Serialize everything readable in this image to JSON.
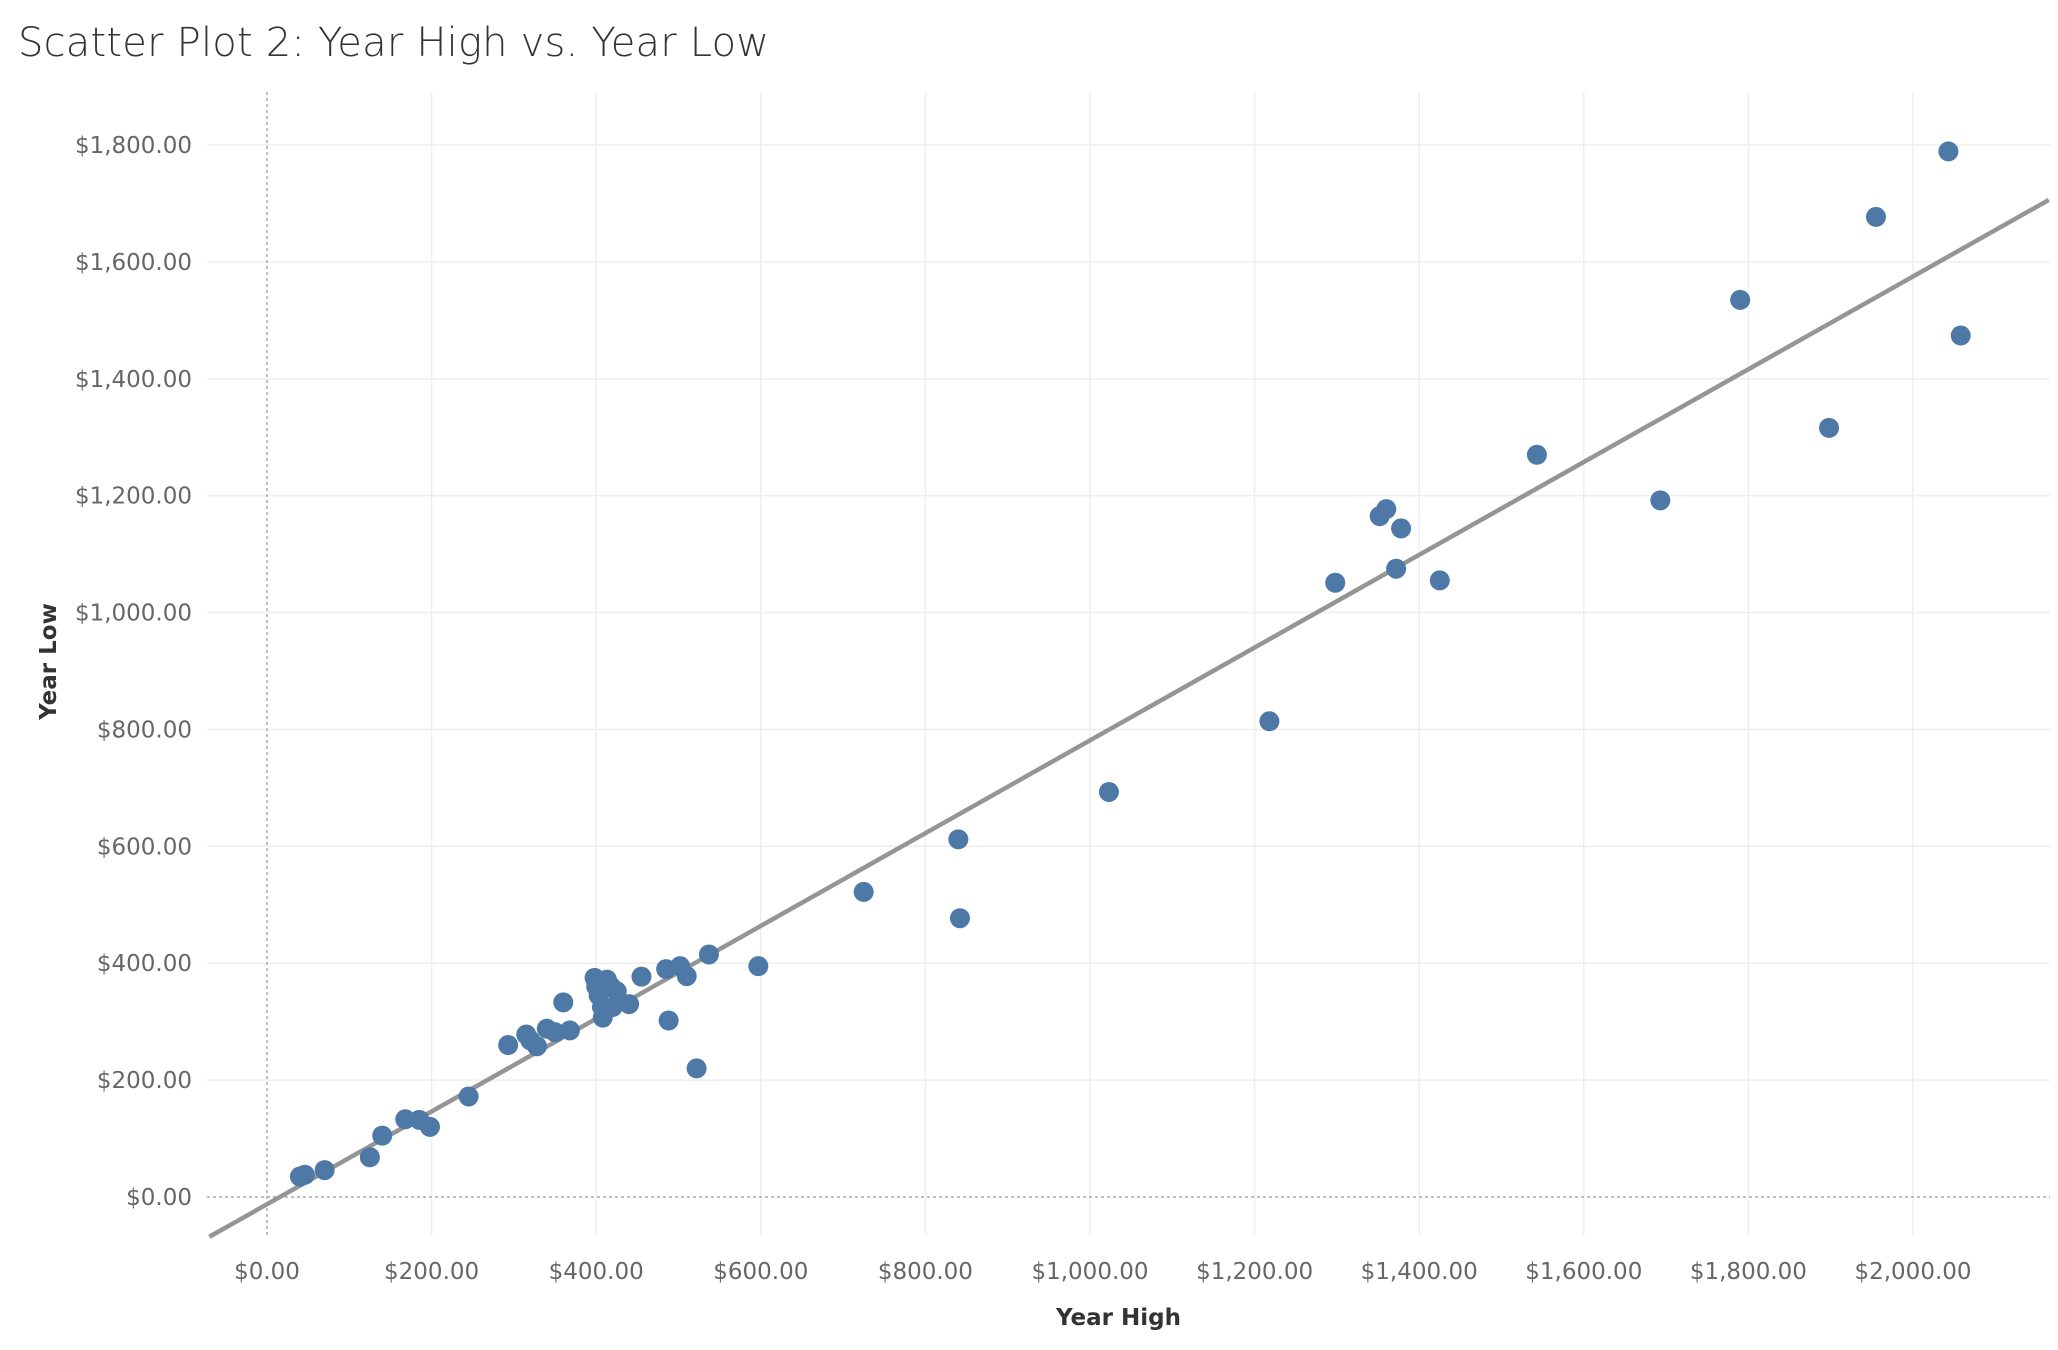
{
  "chart_data": {
    "type": "scatter",
    "title": "Scatter Plot 2: Year High vs. Year Low",
    "xlabel": "Year High",
    "ylabel": "Year Low",
    "xlim": [
      -70,
      2165
    ],
    "ylim": [
      -70,
      1890
    ],
    "x_ticks": [
      0,
      200,
      400,
      600,
      800,
      1000,
      1200,
      1400,
      1600,
      1800,
      2000
    ],
    "x_tick_labels": [
      "$0.00",
      "$200.00",
      "$400.00",
      "$600.00",
      "$800.00",
      "$1,000.00",
      "$1,200.00",
      "$1,400.00",
      "$1,600.00",
      "$1,800.00",
      "$2,000.00"
    ],
    "y_ticks": [
      0,
      200,
      400,
      600,
      800,
      1000,
      1200,
      1400,
      1600,
      1800
    ],
    "y_tick_labels": [
      "$0.00",
      "$200.00",
      "$400.00",
      "$600.00",
      "$800.00",
      "$1,000.00",
      "$1,200.00",
      "$1,400.00",
      "$1,600.00",
      "$1,800.00"
    ],
    "grid": true,
    "trend_line": {
      "from": [
        -70,
        -68
      ],
      "to": [
        2165,
        1706
      ]
    },
    "points": [
      [
        40,
        35
      ],
      [
        46,
        38
      ],
      [
        70,
        46
      ],
      [
        125,
        68
      ],
      [
        140,
        105
      ],
      [
        168,
        133
      ],
      [
        185,
        132
      ],
      [
        198,
        120
      ],
      [
        245,
        172
      ],
      [
        293,
        260
      ],
      [
        315,
        278
      ],
      [
        320,
        268
      ],
      [
        328,
        258
      ],
      [
        340,
        288
      ],
      [
        350,
        282
      ],
      [
        360,
        333
      ],
      [
        368,
        285
      ],
      [
        398,
        375
      ],
      [
        400,
        360
      ],
      [
        403,
        345
      ],
      [
        407,
        325
      ],
      [
        408,
        307
      ],
      [
        413,
        372
      ],
      [
        418,
        360
      ],
      [
        420,
        325
      ],
      [
        425,
        352
      ],
      [
        440,
        330
      ],
      [
        455,
        377
      ],
      [
        485,
        390
      ],
      [
        488,
        302
      ],
      [
        502,
        395
      ],
      [
        510,
        378
      ],
      [
        522,
        220
      ],
      [
        537,
        415
      ],
      [
        597,
        395
      ],
      [
        725,
        522
      ],
      [
        840,
        612
      ],
      [
        842,
        477
      ],
      [
        1023,
        693
      ],
      [
        1218,
        814
      ],
      [
        1298,
        1051
      ],
      [
        1352,
        1165
      ],
      [
        1360,
        1177
      ],
      [
        1372,
        1075
      ],
      [
        1378,
        1144
      ],
      [
        1425,
        1055
      ],
      [
        1543,
        1270
      ],
      [
        1693,
        1192
      ],
      [
        1790,
        1535
      ],
      [
        1898,
        1316
      ],
      [
        1955,
        1677
      ],
      [
        2043,
        1789
      ],
      [
        2058,
        1474
      ]
    ],
    "colors": {
      "point": "#4e79a7",
      "trend": "#959595",
      "grid": "#eeeeee",
      "zero": "#aaaaaa"
    }
  }
}
